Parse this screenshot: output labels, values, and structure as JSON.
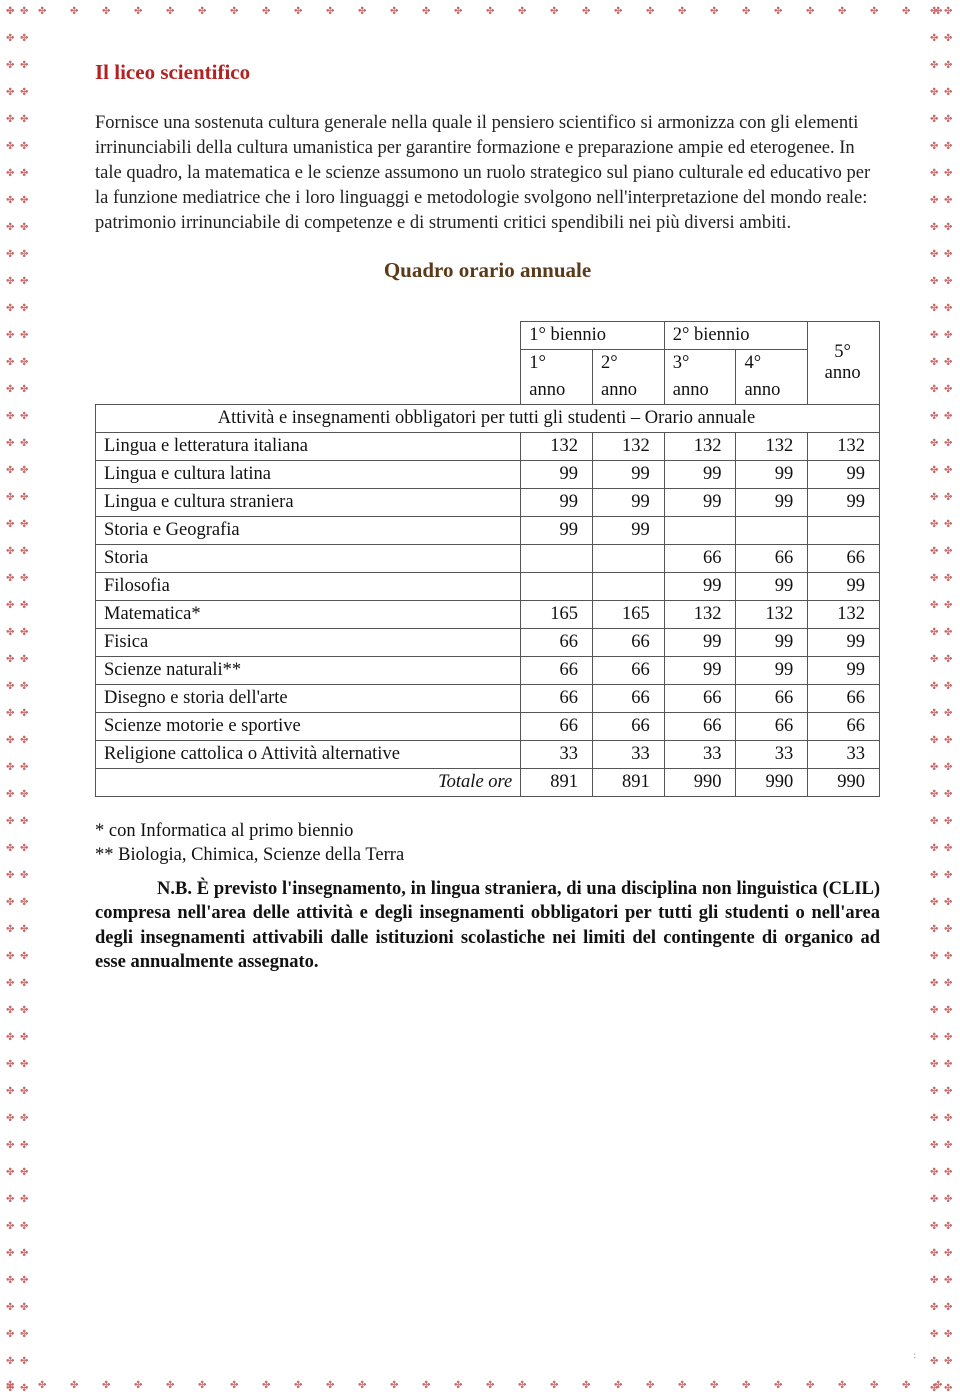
{
  "title": "Il liceo scientifico",
  "para": "Fornisce una sostenuta cultura generale nella quale il pensiero scientifico si armonizza con gli elementi irrinunciabili della cultura umanistica per garantire formazione e preparazione ampie ed eterogenee. In tale quadro, la matematica e le scienze assumono un ruolo strategico sul piano culturale ed educativo per la funzione mediatrice che i loro linguaggi e metodologie svolgono nell'interpretazione del mondo reale: patrimonio irrinunciabile di competenze e di strumenti critici spendibili nei più diversi ambiti.",
  "heading2": "Quadro orario annuale",
  "table": {
    "biennio1": "1° biennio",
    "biennio2": "2° biennio",
    "h1": "1°",
    "h2": "2°",
    "h3": "3°",
    "h4": "4°",
    "h5": "5° anno",
    "anno": "anno",
    "section": "Attività e insegnamenti obbligatori per tutti gli studenti – Orario annuale",
    "rows": [
      {
        "label": "Lingua e letteratura italiana",
        "v": [
          "132",
          "132",
          "132",
          "132",
          "132"
        ]
      },
      {
        "label": "Lingua e cultura latina",
        "v": [
          "99",
          "99",
          "99",
          "99",
          "99"
        ]
      },
      {
        "label": "Lingua  e cultura straniera",
        "v": [
          "99",
          "99",
          "99",
          "99",
          "99"
        ]
      },
      {
        "label": "Storia e Geografia",
        "v": [
          "99",
          "99",
          "",
          "",
          ""
        ]
      },
      {
        "label": "Storia",
        "v": [
          "",
          "",
          "66",
          "66",
          "66"
        ]
      },
      {
        "label": "Filosofia",
        "v": [
          "",
          "",
          "99",
          "99",
          "99"
        ]
      },
      {
        "label": "Matematica*",
        "v": [
          "165",
          "165",
          "132",
          "132",
          "132"
        ]
      },
      {
        "label": "Fisica",
        "v": [
          "66",
          "66",
          "99",
          "99",
          "99"
        ]
      },
      {
        "label": "Scienze naturali**",
        "v": [
          "66",
          "66",
          "99",
          "99",
          "99"
        ]
      },
      {
        "label": "Disegno e storia dell'arte",
        "v": [
          "66",
          "66",
          "66",
          "66",
          "66"
        ]
      },
      {
        "label": "Scienze motorie e sportive",
        "v": [
          "66",
          "66",
          "66",
          "66",
          "66"
        ]
      },
      {
        "label": "Religione cattolica o Attività alternative",
        "v": [
          "33",
          "33",
          "33",
          "33",
          "33"
        ]
      }
    ],
    "totale_label": "Totale ore",
    "totale": [
      "891",
      "891",
      "990",
      "990",
      "990"
    ]
  },
  "note1": "* con Informatica al primo biennio",
  "note2": "** Biologia, Chimica, Scienze della Terra",
  "nb_label": "N.B.",
  "nb": "È previsto l'insegnamento, in lingua straniera, di una disciplina non linguistica (CLIL) compresa nell'area delle attività e degli insegnamenti obbligatori per tutti gli studenti o nell'area degli insegnamenti attivabili dalle istituzioni scolastiche nei limiti del contingente di organico ad esse annualmente assegnato.",
  "colors": {
    "title": "#b22222",
    "heading": "#5b3a1a",
    "border_ornament": "#c96a6a"
  }
}
